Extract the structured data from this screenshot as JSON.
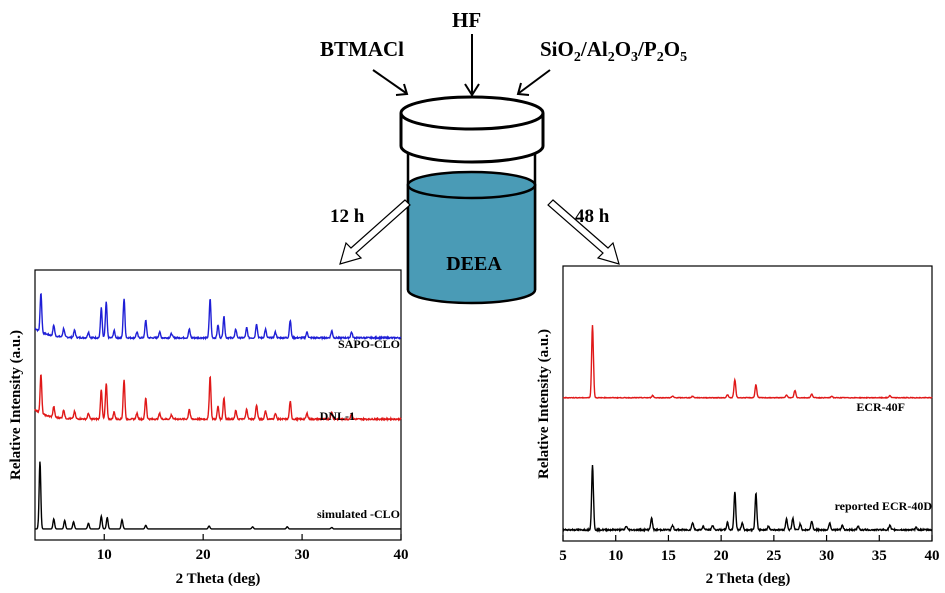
{
  "reagents": {
    "left": "BTMACl",
    "top": "HF",
    "right": {
      "parts": [
        "SiO",
        "2",
        "/Al",
        "2",
        "O",
        "3",
        "/P",
        "2",
        "O",
        "5"
      ]
    }
  },
  "vessel": {
    "label": "DEEA",
    "liquid_color": "#4a9bb6"
  },
  "routes": {
    "left_time": "12 h",
    "right_time": "48 h"
  },
  "chart_data": [
    {
      "type": "line",
      "xlabel": "2 Theta (deg)",
      "ylabel": "Relative Intensity (a.u.)",
      "xlim": [
        3,
        40
      ],
      "xticks": [
        10,
        20,
        30,
        40
      ],
      "y_ticks_shown": false,
      "series": [
        {
          "name": "SAPO-CLO",
          "color": "#1f1fd6",
          "offset": 0.75,
          "baseline": 0.08,
          "noise": 0.02,
          "tail": 0.45,
          "peaks": [
            [
              3.6,
              0.55
            ],
            [
              4.9,
              0.15
            ],
            [
              5.9,
              0.12
            ],
            [
              7.0,
              0.1
            ],
            [
              8.4,
              0.08
            ],
            [
              9.7,
              0.42
            ],
            [
              10.2,
              0.5
            ],
            [
              11.0,
              0.1
            ],
            [
              12.0,
              0.55
            ],
            [
              13.3,
              0.08
            ],
            [
              14.2,
              0.25
            ],
            [
              15.6,
              0.08
            ],
            [
              16.8,
              0.06
            ],
            [
              18.6,
              0.12
            ],
            [
              20.7,
              0.55
            ],
            [
              21.5,
              0.18
            ],
            [
              22.1,
              0.3
            ],
            [
              23.3,
              0.12
            ],
            [
              24.4,
              0.14
            ],
            [
              25.4,
              0.2
            ],
            [
              26.3,
              0.12
            ],
            [
              27.3,
              0.08
            ],
            [
              28.8,
              0.25
            ],
            [
              30.5,
              0.08
            ],
            [
              33.0,
              0.1
            ],
            [
              35.0,
              0.08
            ]
          ]
        },
        {
          "name": "DNL-1",
          "color": "#e01818",
          "offset": 0.43,
          "baseline": 0.08,
          "noise": 0.02,
          "tail": 0.45,
          "peaks": [
            [
              3.6,
              0.55
            ],
            [
              4.9,
              0.15
            ],
            [
              5.9,
              0.12
            ],
            [
              7.0,
              0.1
            ],
            [
              8.4,
              0.08
            ],
            [
              9.7,
              0.42
            ],
            [
              10.2,
              0.5
            ],
            [
              11.0,
              0.1
            ],
            [
              12.0,
              0.55
            ],
            [
              13.3,
              0.08
            ],
            [
              14.2,
              0.3
            ],
            [
              15.6,
              0.08
            ],
            [
              16.8,
              0.06
            ],
            [
              18.6,
              0.14
            ],
            [
              20.7,
              0.6
            ],
            [
              21.5,
              0.18
            ],
            [
              22.1,
              0.3
            ],
            [
              23.3,
              0.12
            ],
            [
              24.4,
              0.14
            ],
            [
              25.4,
              0.2
            ],
            [
              26.3,
              0.12
            ],
            [
              27.3,
              0.08
            ],
            [
              28.8,
              0.25
            ],
            [
              30.5,
              0.08
            ],
            [
              33.0,
              0.1
            ],
            [
              35.0,
              0.08
            ]
          ]
        },
        {
          "name": "simulated -CLO",
          "color": "#000000",
          "offset": 0.02,
          "baseline": 0.0,
          "noise": 0.0,
          "tail": 0.0,
          "peaks": [
            [
              3.5,
              0.95
            ],
            [
              4.9,
              0.14
            ],
            [
              6.0,
              0.12
            ],
            [
              6.9,
              0.1
            ],
            [
              8.4,
              0.08
            ],
            [
              9.7,
              0.18
            ],
            [
              10.3,
              0.16
            ],
            [
              11.8,
              0.13
            ],
            [
              14.2,
              0.05
            ],
            [
              20.6,
              0.04
            ],
            [
              25.0,
              0.03
            ],
            [
              28.5,
              0.03
            ],
            [
              33.0,
              0.02
            ]
          ]
        }
      ],
      "annotations": [
        "SAPO-CLO",
        "DNL-1",
        "simulated -CLO"
      ]
    },
    {
      "type": "line",
      "xlabel": "2 Theta (deg)",
      "ylabel": "Relative Intensity (a.u.)",
      "xlim": [
        5,
        40
      ],
      "xticks": [
        5,
        10,
        15,
        20,
        25,
        30,
        35,
        40
      ],
      "y_ticks_shown": false,
      "series": [
        {
          "name": "ECR-40F",
          "color": "#e01818",
          "offset": 0.53,
          "baseline": 0.0,
          "noise": 0.008,
          "tail": 0.0,
          "peaks": [
            [
              7.8,
              1.0
            ],
            [
              13.5,
              0.03
            ],
            [
              15.4,
              0.02
            ],
            [
              17.3,
              0.02
            ],
            [
              20.6,
              0.04
            ],
            [
              21.3,
              0.25
            ],
            [
              23.3,
              0.18
            ],
            [
              26.2,
              0.04
            ],
            [
              27.0,
              0.1
            ],
            [
              28.6,
              0.05
            ],
            [
              30.5,
              0.02
            ],
            [
              36.0,
              0.03
            ]
          ]
        },
        {
          "name": "reported ECR-40D",
          "color": "#000000",
          "offset": 0.02,
          "baseline": 0.0,
          "noise": 0.02,
          "tail": 0.0,
          "peaks": [
            [
              7.8,
              0.9
            ],
            [
              11.0,
              0.05
            ],
            [
              13.4,
              0.16
            ],
            [
              15.4,
              0.06
            ],
            [
              17.3,
              0.1
            ],
            [
              18.3,
              0.05
            ],
            [
              19.2,
              0.06
            ],
            [
              20.6,
              0.1
            ],
            [
              21.3,
              0.53
            ],
            [
              22.0,
              0.1
            ],
            [
              23.3,
              0.5
            ],
            [
              24.5,
              0.05
            ],
            [
              26.2,
              0.15
            ],
            [
              26.8,
              0.16
            ],
            [
              27.5,
              0.08
            ],
            [
              28.6,
              0.12
            ],
            [
              30.3,
              0.1
            ],
            [
              31.5,
              0.06
            ],
            [
              33.0,
              0.05
            ],
            [
              36.0,
              0.06
            ],
            [
              38.5,
              0.03
            ]
          ]
        }
      ],
      "annotations": [
        "ECR-40F",
        "reported ECR-40D"
      ]
    }
  ]
}
